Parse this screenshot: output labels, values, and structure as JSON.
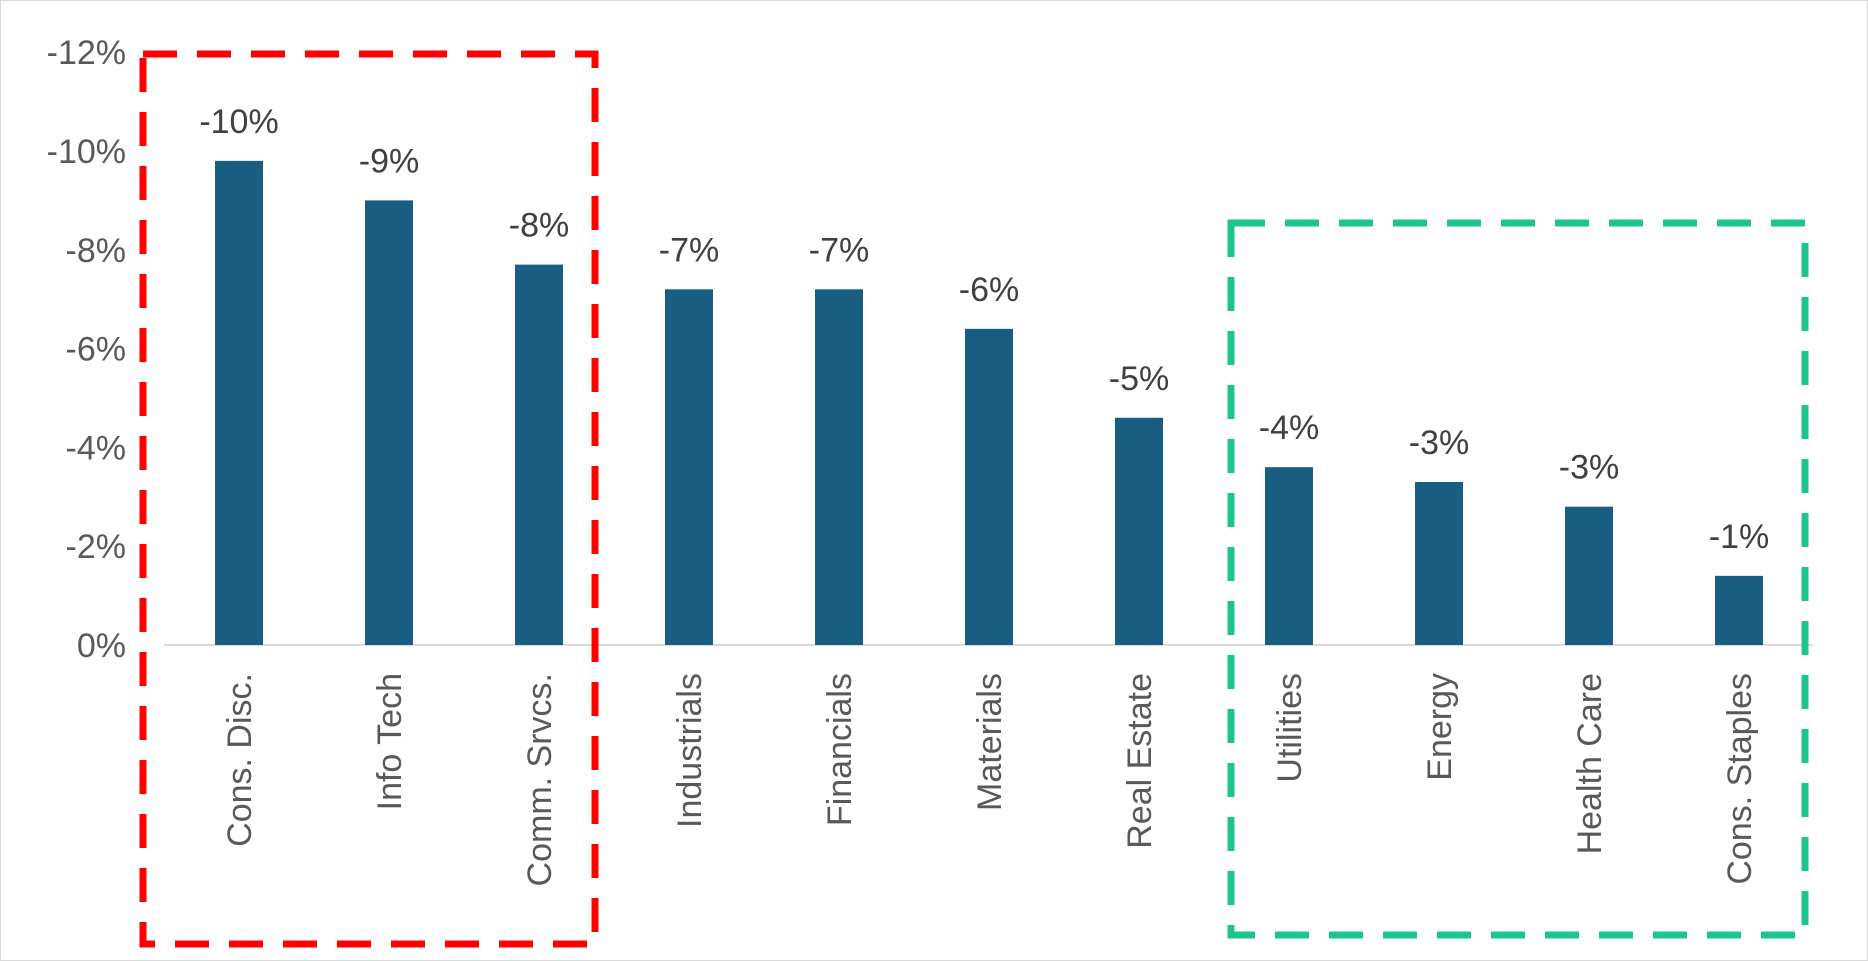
{
  "chart_data": {
    "type": "bar",
    "title": "",
    "xlabel": "",
    "ylabel": "",
    "categories": [
      "Cons. Disc.",
      "Info Tech",
      "Comm. Srvcs.",
      "Industrials",
      "Financials",
      "Materials",
      "Real Estate",
      "Utilities",
      "Energy",
      "Health Care",
      "Cons. Staples"
    ],
    "values": [
      -9.8,
      -9.0,
      -7.7,
      -7.2,
      -7.2,
      -6.4,
      -4.6,
      -3.6,
      -3.3,
      -2.8,
      -1.4
    ],
    "data_labels": [
      "-10%",
      "-9%",
      "-8%",
      "-7%",
      "-7%",
      "-6%",
      "-5%",
      "-4%",
      "-3%",
      "-3%",
      "-1%"
    ],
    "y_ticks": [
      0,
      -2,
      -4,
      -6,
      -8,
      -10,
      -12
    ],
    "y_tick_labels": [
      "0%",
      "-2%",
      "-4%",
      "-6%",
      "-8%",
      "-10%",
      "-12%"
    ],
    "ylim": [
      0,
      -12
    ],
    "y_axis_reversed": true,
    "grid": false,
    "legend": "none",
    "bar_color": "#175E80",
    "highlight_groups": [
      {
        "name": "worst",
        "categories": [
          "Cons. Disc.",
          "Info Tech",
          "Comm. Srvcs."
        ],
        "style": "dashed-box",
        "color": "#FF0000"
      },
      {
        "name": "best",
        "categories": [
          "Utilities",
          "Energy",
          "Health Care",
          "Cons. Staples"
        ],
        "style": "dashed-box",
        "color": "#1DC58E"
      }
    ]
  }
}
